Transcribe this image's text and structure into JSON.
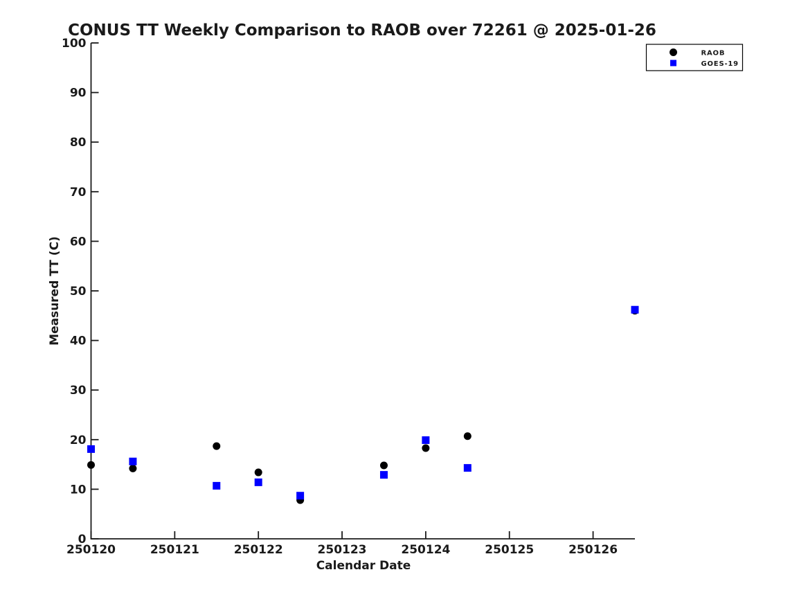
{
  "chart_data": {
    "type": "scatter",
    "title": "CONUS TT Weekly Comparison to RAOB over 72261 @ 2025-01-26",
    "xlabel": "Calendar Date",
    "ylabel": "Measured TT (C)",
    "xlim": [
      250120,
      250126.5
    ],
    "ylim": [
      0,
      100
    ],
    "xticks": [
      250120,
      250121,
      250122,
      250123,
      250124,
      250125,
      250126
    ],
    "yticks": [
      0,
      10,
      20,
      30,
      40,
      50,
      60,
      70,
      80,
      90,
      100
    ],
    "grid": false,
    "legend_position": "top-right",
    "axis_color": "#1a1a1a",
    "series": [
      {
        "name": "RAOB",
        "marker": "circle",
        "color": "#000000",
        "points": [
          [
            250120.0,
            14.9
          ],
          [
            250120.5,
            14.2
          ],
          [
            250121.5,
            18.7
          ],
          [
            250122.0,
            13.4
          ],
          [
            250122.5,
            7.8
          ],
          [
            250123.5,
            14.8
          ],
          [
            250124.0,
            18.3
          ],
          [
            250124.5,
            20.7
          ],
          [
            250126.5,
            46.0
          ]
        ]
      },
      {
        "name": "GOES-19",
        "marker": "square",
        "color": "#0000ff",
        "points": [
          [
            250120.0,
            18.1
          ],
          [
            250120.5,
            15.6
          ],
          [
            250121.5,
            10.7
          ],
          [
            250122.0,
            11.4
          ],
          [
            250122.5,
            8.7
          ],
          [
            250123.5,
            12.9
          ],
          [
            250124.0,
            19.9
          ],
          [
            250124.5,
            14.3
          ],
          [
            250126.5,
            46.2
          ]
        ]
      }
    ]
  }
}
